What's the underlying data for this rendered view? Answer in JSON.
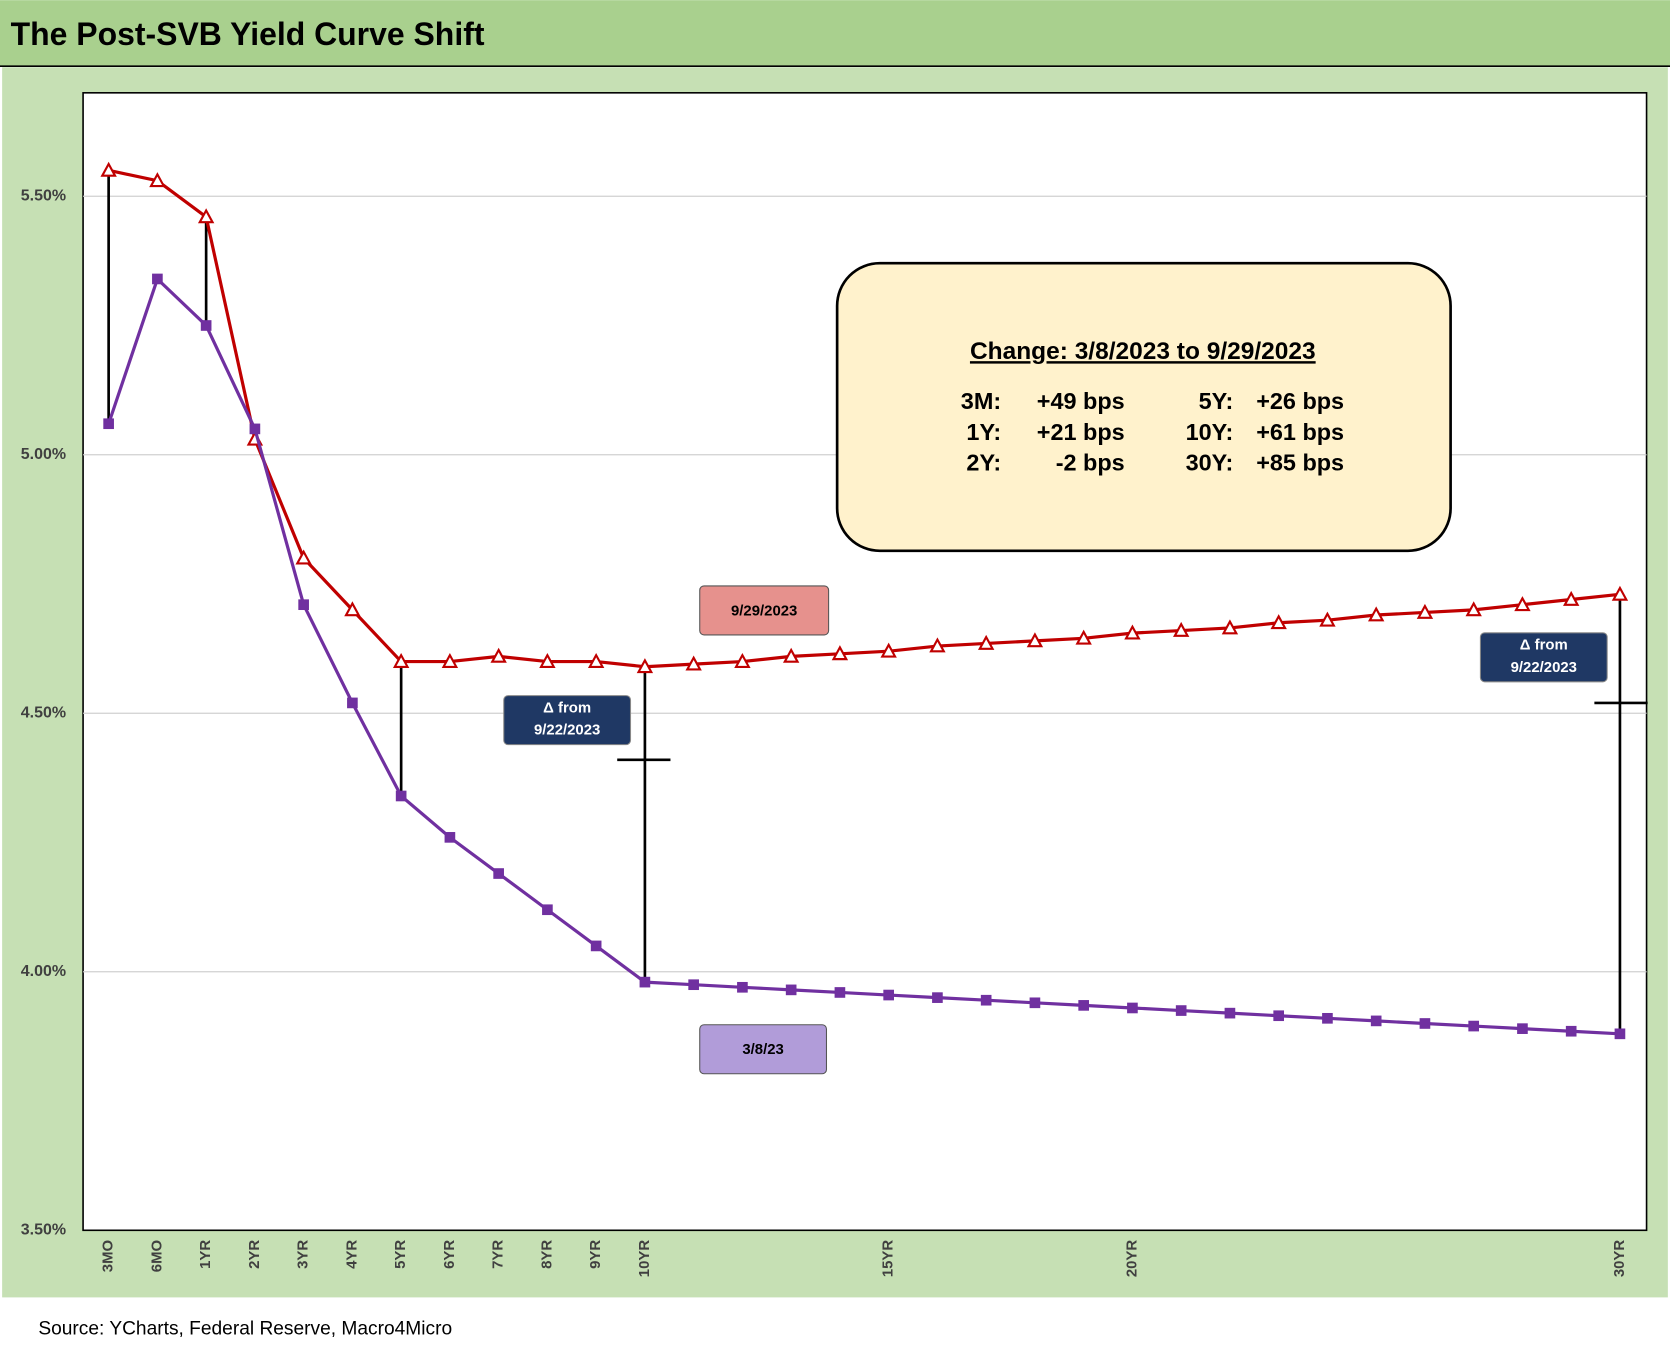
{
  "chart_data": {
    "type": "line",
    "title": "The Post-SVB Yield Curve Shift",
    "source": "Source: YCharts, Federal Reserve, Macro4Micro",
    "categories": [
      "3MO",
      "6MO",
      "1YR",
      "2YR",
      "3YR",
      "4YR",
      "5YR",
      "6YR",
      "7YR",
      "8YR",
      "9YR",
      "10YR",
      null,
      null,
      null,
      null,
      "15YR",
      null,
      null,
      null,
      null,
      "20YR",
      null,
      null,
      null,
      null,
      null,
      null,
      null,
      null,
      null,
      "30YR"
    ],
    "series": [
      {
        "name": "9/29/2023",
        "color": "#c00000",
        "label_color": "#e6918d",
        "marker": "triangle",
        "values": [
          5.55,
          5.53,
          5.46,
          5.03,
          4.8,
          4.7,
          4.6,
          4.6,
          4.61,
          4.6,
          4.6,
          4.59,
          4.595,
          4.6,
          4.61,
          4.615,
          4.62,
          4.63,
          4.635,
          4.64,
          4.645,
          4.655,
          4.66,
          4.665,
          4.675,
          4.68,
          4.69,
          4.695,
          4.7,
          4.71,
          4.72,
          4.73
        ]
      },
      {
        "name": "3/8/23",
        "color": "#7030a0",
        "label_color": "#b19cd9",
        "marker": "square",
        "values": [
          5.06,
          5.34,
          5.25,
          5.05,
          4.71,
          4.52,
          4.34,
          4.26,
          4.19,
          4.12,
          4.05,
          3.98,
          3.975,
          3.97,
          3.965,
          3.96,
          3.955,
          3.95,
          3.945,
          3.94,
          3.935,
          3.93,
          3.925,
          3.92,
          3.915,
          3.91,
          3.905,
          3.9,
          3.895,
          3.89,
          3.885,
          3.88
        ]
      }
    ],
    "ylim": [
      3.5,
      5.7
    ],
    "yticks": [
      {
        "value": 3.5,
        "label": "3.50%"
      },
      {
        "value": 4.0,
        "label": "4.00%"
      },
      {
        "value": 4.5,
        "label": "4.50%"
      },
      {
        "value": 5.0,
        "label": "5.00%"
      },
      {
        "value": 5.5,
        "label": "5.50%"
      }
    ],
    "grid": true,
    "spread_lines": [
      "3MO",
      "1YR",
      "5YR",
      "10YR",
      "30YR"
    ],
    "delta_markers": [
      {
        "category": "10YR",
        "value": 4.41,
        "label": [
          "Δ from",
          "9/22/2023"
        ]
      },
      {
        "category": "30YR",
        "value": 4.52,
        "label": [
          "Δ from",
          "9/22/2023"
        ]
      }
    ],
    "info_box": {
      "title": "Change: 3/8/2023 to 9/29/2023",
      "rows": [
        [
          "3M:",
          "+49 bps",
          "5Y:",
          "+26 bps"
        ],
        [
          "1Y:",
          "+21 bps",
          "10Y:",
          "+61 bps"
        ],
        [
          "2Y:",
          "-2 bps",
          "30Y:",
          "+85 bps"
        ]
      ]
    }
  }
}
